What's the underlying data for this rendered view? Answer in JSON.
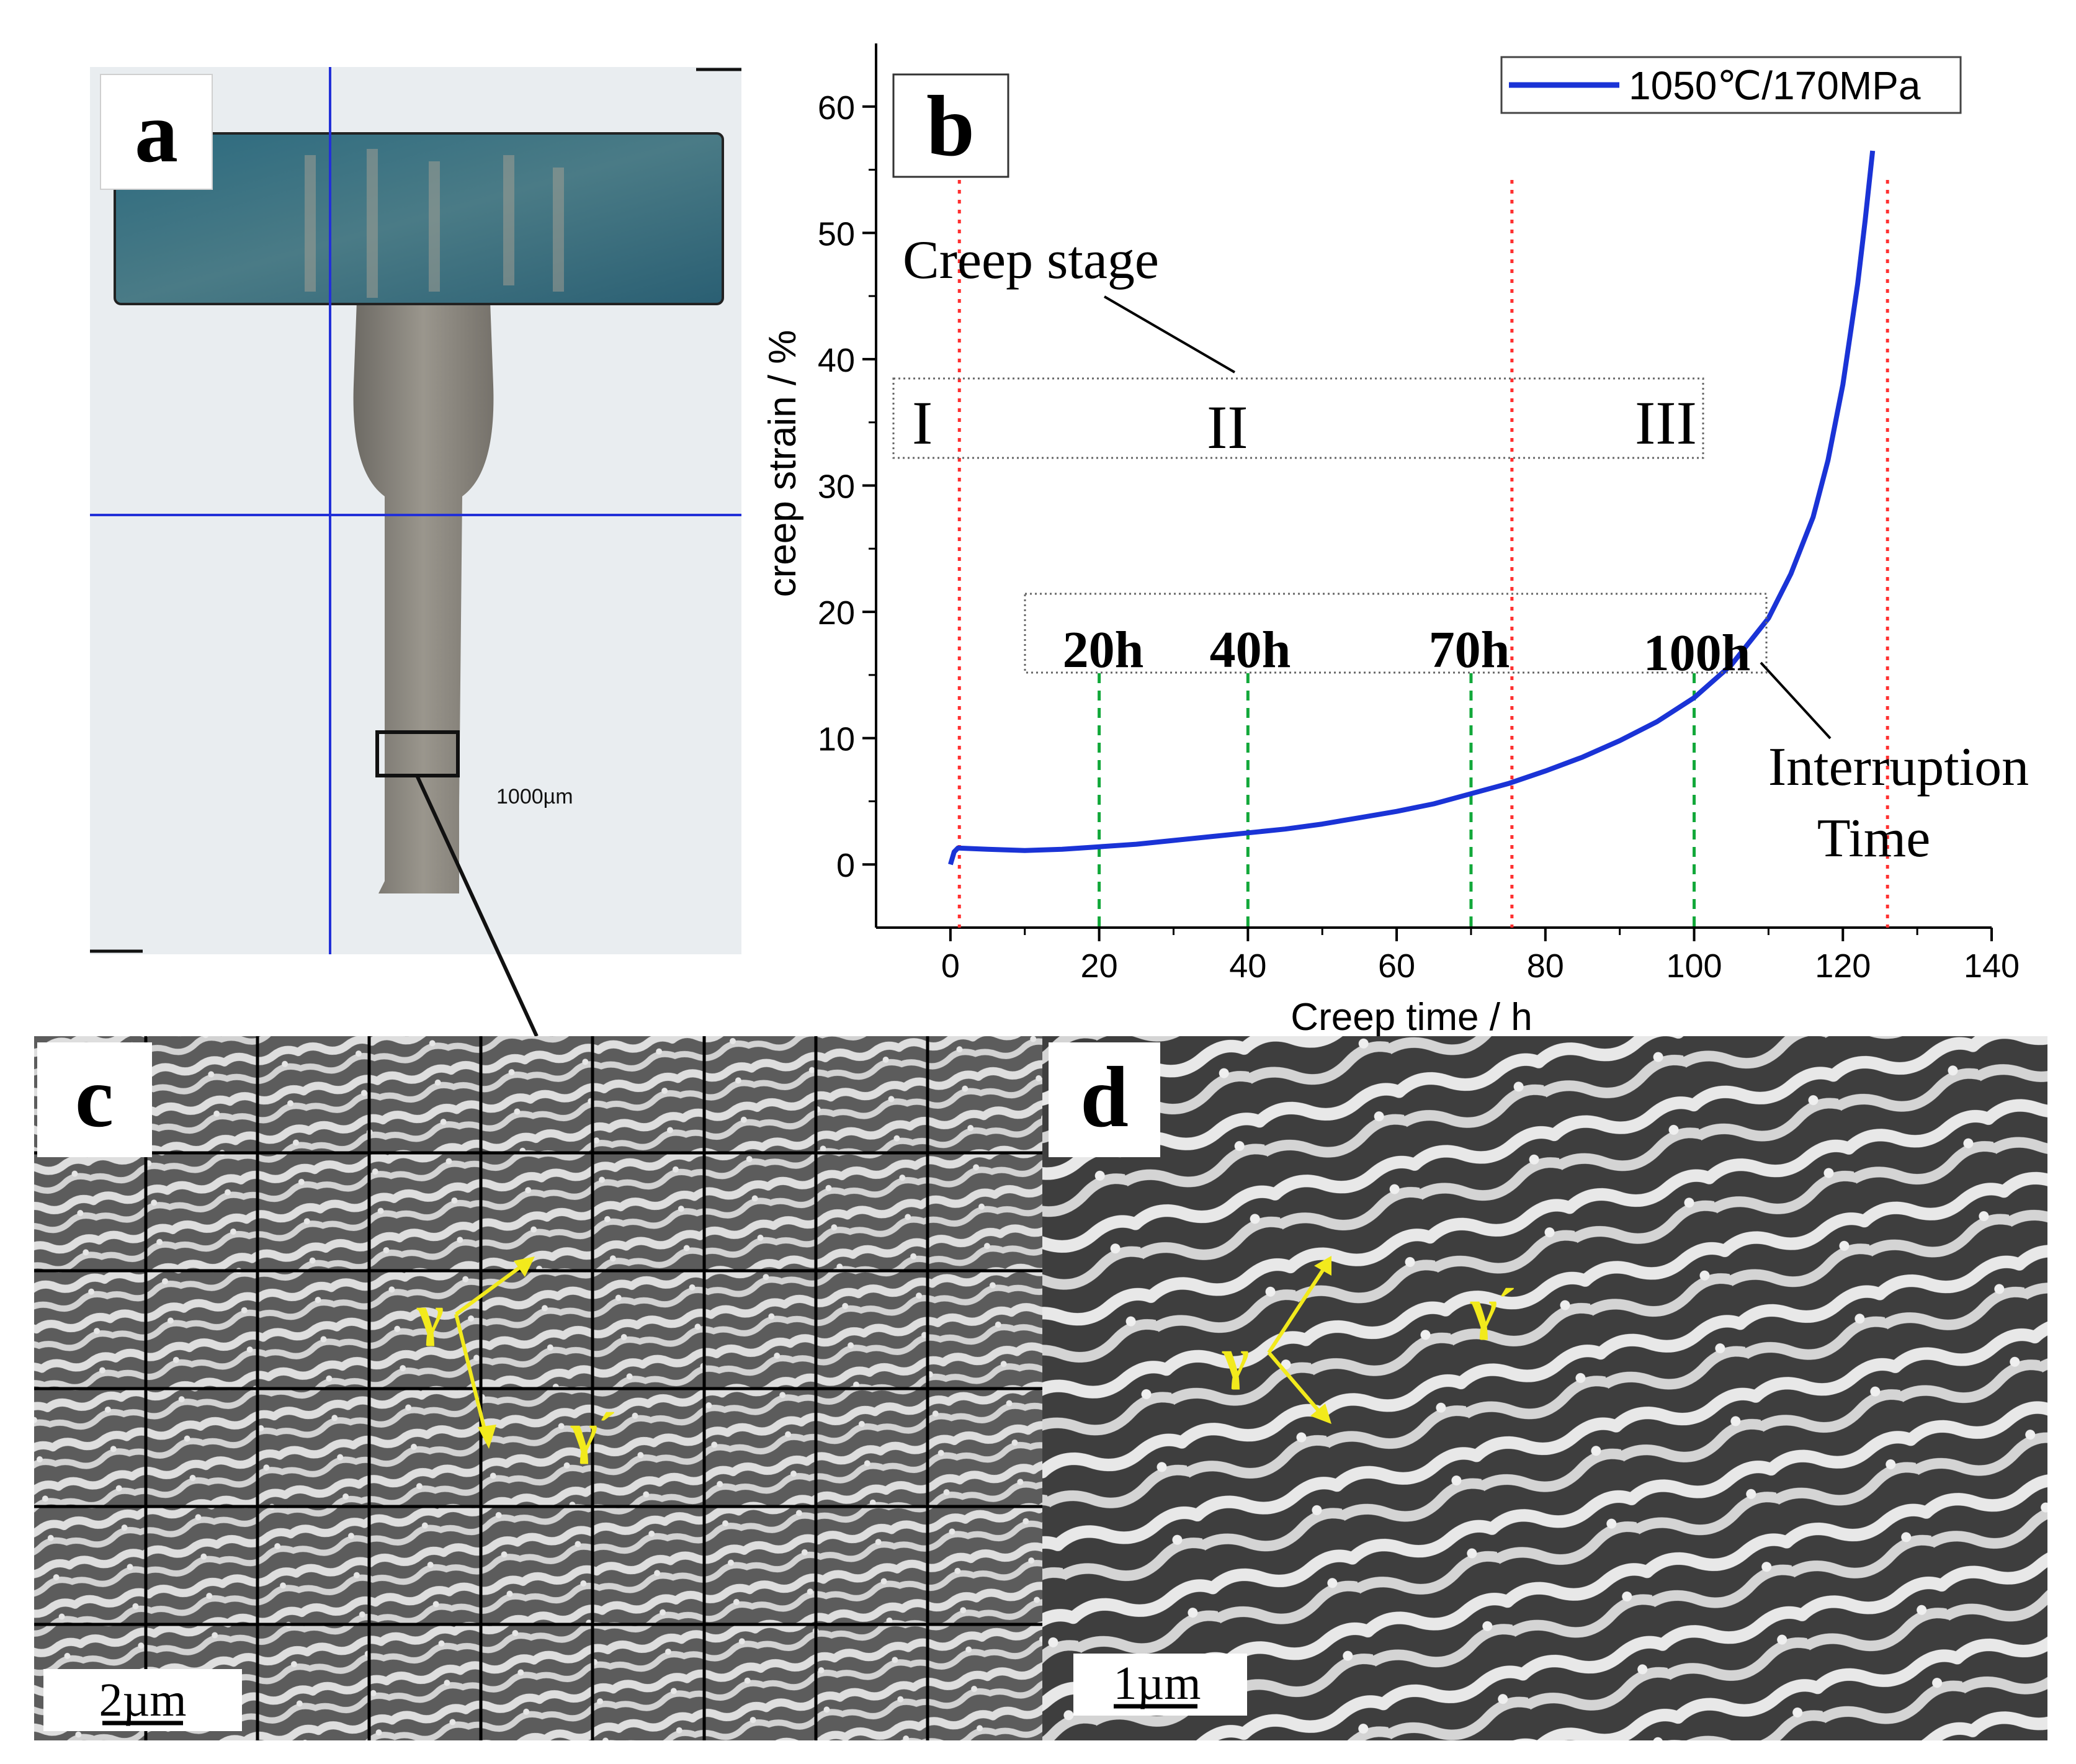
{
  "panels": {
    "a": {
      "label": "a",
      "scale_bar": "1000µm"
    },
    "b": {
      "label": "b",
      "annotations": {
        "creep_stage": "Creep stage",
        "stage_1": "I",
        "stage_2": "II",
        "stage_3": "III",
        "interruption_line1": "Interruption",
        "interruption_line2": "Time",
        "interruptions": [
          "20h",
          "40h",
          "70h",
          "100h"
        ]
      }
    },
    "c": {
      "label": "c",
      "scale_bar": "2µm",
      "gamma": "γ",
      "gamma_prime": "γ´"
    },
    "d": {
      "label": "d",
      "scale_bar": "1µm",
      "gamma": "γ",
      "gamma_prime": "γ´"
    }
  },
  "colors": {
    "curve": "#1a33d6",
    "stage_boundary": "#ff3030",
    "interruption": "#12a83a",
    "crosshair": "#2230d8",
    "phase_label": "#f2ea1c",
    "specimen_head": "#2e6b7e",
    "specimen_body": "#8a857c"
  },
  "chart_data": {
    "type": "line",
    "xlabel": "Creep time / h",
    "ylabel": "creep strain / %",
    "xlim": [
      -10,
      140
    ],
    "ylim": [
      -5,
      65
    ],
    "xticks": [
      0,
      20,
      40,
      60,
      80,
      100,
      120,
      140
    ],
    "yticks": [
      0,
      10,
      20,
      30,
      40,
      50,
      60
    ],
    "legend_position": "top-right",
    "series": [
      {
        "name": "1050℃/170MPa",
        "x": [
          0,
          0.5,
          1,
          5,
          10,
          15,
          20,
          25,
          30,
          35,
          40,
          45,
          50,
          55,
          60,
          65,
          70,
          75,
          80,
          85,
          90,
          95,
          100,
          105,
          110,
          113,
          116,
          118,
          120,
          121,
          122,
          123,
          124
        ],
        "y": [
          0,
          1.0,
          1.3,
          1.2,
          1.1,
          1.2,
          1.4,
          1.6,
          1.9,
          2.2,
          2.5,
          2.8,
          3.2,
          3.7,
          4.2,
          4.8,
          5.6,
          6.4,
          7.4,
          8.5,
          9.8,
          11.3,
          13.2,
          15.8,
          19.5,
          23,
          27.5,
          32,
          38,
          42,
          46,
          51,
          56.5
        ]
      }
    ],
    "stage_boundaries_x": [
      1.2,
      75.5,
      126
    ],
    "interruption_times_x": [
      20,
      40,
      70,
      100
    ]
  }
}
